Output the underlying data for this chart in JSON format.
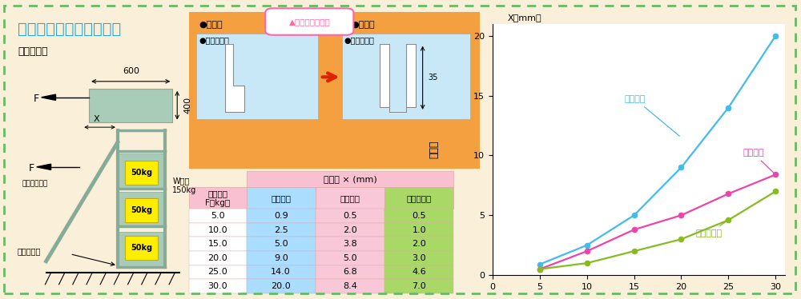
{
  "title": "ワゴン横揺れ比較テスト",
  "subtitle": "テスト要項",
  "bg_color": "#faefd8",
  "border_color": "#66bb66",
  "chart_bg": "#ffffff",
  "F_values": [
    5.0,
    10.0,
    15.0,
    20.0,
    25.0,
    30.0
  ],
  "other_product": [
    0.9,
    2.5,
    5.0,
    9.0,
    14.0,
    20.0
  ],
  "our_product": [
    0.5,
    2.0,
    3.8,
    5.0,
    6.8,
    8.4
  ],
  "our_improved": [
    0.5,
    1.0,
    2.0,
    3.0,
    4.6,
    7.0
  ],
  "other_color": "#44bbee",
  "our_color": "#ee44aa",
  "improved_color": "#88bb22",
  "other_label": "他社製品",
  "our_label": "当社製品",
  "improved_label": "当社改良品",
  "xlabel": "F（kg）",
  "xlabel2": "引張り力",
  "ylabel": "変形量",
  "ylabel2": "X（mm）",
  "xlim": [
    0,
    31
  ],
  "ylim": [
    0,
    21
  ],
  "xticks": [
    0,
    5,
    10,
    15,
    20,
    25,
    30
  ],
  "yticks": [
    0,
    5,
    10,
    15,
    20
  ],
  "table_rows": [
    [
      "5.0",
      "0.9",
      "0.5",
      "0.5"
    ],
    [
      "10.0",
      "2.5",
      "2.0",
      "1.0"
    ],
    [
      "15.0",
      "5.0",
      "3.8",
      "2.0"
    ],
    [
      "20.0",
      "9.0",
      "5.0",
      "3.0"
    ],
    [
      "25.0",
      "14.0",
      "6.8",
      "4.6"
    ],
    [
      "30.0",
      "20.0",
      "8.4",
      "7.0"
    ]
  ],
  "orange_bg": "#f5a040",
  "light_blue": "#c8e8f8",
  "shelf_green": "#a8ccb8",
  "shelf_green_dark": "#88aa99",
  "yellow_weight": "#ffee00",
  "grade_up_color": "#ff66aa",
  "arrow_red": "#dd2200",
  "col_blue": "#aaddff",
  "col_pink": "#f8c8d8",
  "col_green": "#aad866",
  "header_pink": "#f8c0d0",
  "title_blue": "#22aadd"
}
